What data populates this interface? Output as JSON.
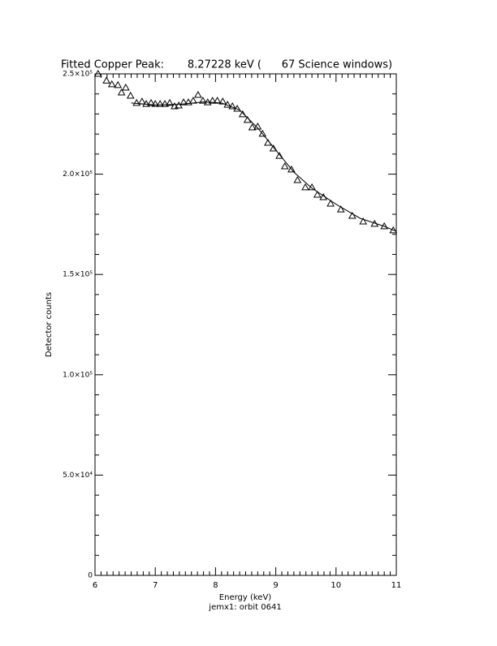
{
  "chart_data": {
    "type": "scatter",
    "title": "Fitted Copper Peak:       8.27228 keV (      67 Science windows)",
    "x_label": "Energy (keV)",
    "subtitle": "jemx1: orbit 0641",
    "y_label": "Detector counts",
    "xlim": [
      6,
      11
    ],
    "xticks": [
      6,
      7,
      8,
      9,
      10,
      11
    ],
    "ylim": [
      0,
      250000
    ],
    "yticks": [
      {
        "value": 0,
        "label": "0"
      },
      {
        "value": 50000,
        "label": "5.0×10⁴"
      },
      {
        "value": 100000,
        "label": "1.0×10⁵"
      },
      {
        "value": 150000,
        "label": "1.5×10⁵"
      },
      {
        "value": 200000,
        "label": "2.0×10⁵"
      },
      {
        "value": 250000,
        "label": "2.5×10⁵"
      }
    ],
    "series": [
      {
        "type": "scatter",
        "color": "#000000",
        "x": [
          6.05,
          6.19,
          6.28,
          6.38,
          6.44,
          6.51,
          6.59,
          6.69,
          6.78,
          6.85,
          6.93,
          7.0,
          7.08,
          7.16,
          7.24,
          7.32,
          7.39,
          7.47,
          7.55,
          7.63,
          7.71,
          7.79,
          7.87,
          7.95,
          8.03,
          8.12,
          8.2,
          8.28,
          8.36,
          8.45,
          8.53,
          8.61,
          8.7,
          8.78,
          8.87,
          8.96,
          9.06,
          9.15,
          9.26,
          9.36,
          9.49,
          9.6,
          9.69,
          9.79,
          9.91,
          10.08,
          10.27,
          10.45,
          10.64,
          10.8,
          10.95
        ],
        "values": [
          250000,
          246600,
          244800,
          244400,
          240700,
          243100,
          239100,
          235500,
          236200,
          235000,
          235500,
          235000,
          235000,
          235000,
          235500,
          233800,
          234200,
          235800,
          235800,
          236600,
          239500,
          236600,
          235800,
          236600,
          236600,
          236200,
          234600,
          233800,
          232600,
          229800,
          227000,
          223300,
          223700,
          220100,
          215600,
          212800,
          209100,
          203900,
          202300,
          197000,
          193400,
          193400,
          189700,
          188500,
          185300,
          182400,
          179200,
          176400,
          175200,
          174000,
          172000
        ]
      },
      {
        "type": "line",
        "color": "#000000",
        "x": [
          6.6,
          7.0,
          7.4,
          7.8,
          8.1,
          8.4,
          8.7,
          9.0,
          9.3,
          9.6,
          10.0,
          10.4,
          10.8,
          11.0
        ],
        "values": [
          235500,
          234500,
          234800,
          236000,
          235500,
          232000,
          223000,
          212000,
          201000,
          193000,
          185000,
          178000,
          174000,
          171500
        ]
      }
    ]
  }
}
